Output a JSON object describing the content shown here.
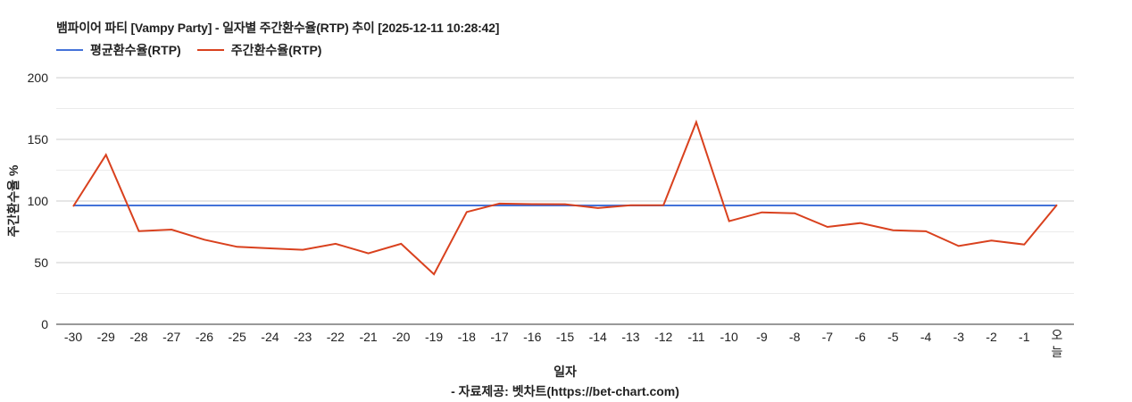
{
  "chart": {
    "title": "뱀파이어 파티 [Vampy Party] - 일자별 주간환수율(RTP) 추이 [2025-12-11 10:28:42]",
    "legend": [
      {
        "label": "평균환수율(RTP)",
        "color": "#4472d9"
      },
      {
        "label": "주간환수율(RTP)",
        "color": "#d9411e"
      }
    ],
    "y_title": "주간환수율 %",
    "x_title": "일자",
    "source": "- 자료제공: 벳차트(https://bet-chart.com)"
  },
  "chart_data": {
    "type": "line",
    "title": "뱀파이어 파티 [Vampy Party] - 일자별 주간환수율(RTP) 추이 [2025-12-11 10:28:42]",
    "xlabel": "일자",
    "ylabel": "주간환수율 %",
    "ylim": [
      0,
      200
    ],
    "yticks": [
      0,
      50,
      100,
      150,
      200
    ],
    "grid": true,
    "legend_position": "top-left",
    "categories": [
      "-30",
      "-29",
      "-28",
      "-27",
      "-26",
      "-25",
      "-24",
      "-23",
      "-22",
      "-21",
      "-20",
      "-19",
      "-18",
      "-17",
      "-16",
      "-15",
      "-14",
      "-13",
      "-12",
      "-11",
      "-10",
      "-9",
      "-8",
      "-7",
      "-6",
      "-5",
      "-4",
      "-3",
      "-2",
      "-1",
      "오늘"
    ],
    "series": [
      {
        "name": "평균환수율(RTP)",
        "color": "#4472d9",
        "values": [
          96.4,
          96.4,
          96.4,
          96.4,
          96.4,
          96.4,
          96.4,
          96.4,
          96.4,
          96.4,
          96.4,
          96.4,
          96.4,
          96.4,
          96.4,
          96.4,
          96.4,
          96.4,
          96.4,
          96.4,
          96.4,
          96.4,
          96.4,
          96.4,
          96.4,
          96.4,
          96.4,
          96.4,
          96.4,
          96.4,
          96.4
        ]
      },
      {
        "name": "주간환수율(RTP)",
        "color": "#d9411e",
        "values": [
          95.6,
          137.5,
          75.6,
          76.8,
          68.6,
          62.8,
          61.6,
          60.4,
          65.3,
          57.5,
          65.3,
          40.6,
          91.1,
          97.9,
          97.5,
          97.4,
          94.3,
          96.5,
          96.7,
          164.0,
          83.6,
          90.8,
          90.1,
          79.0,
          82.1,
          76.3,
          75.4,
          63.5,
          67.9,
          64.7,
          96.9
        ]
      }
    ],
    "source": "- 자료제공: 벳차트(https://bet-chart.com)"
  }
}
